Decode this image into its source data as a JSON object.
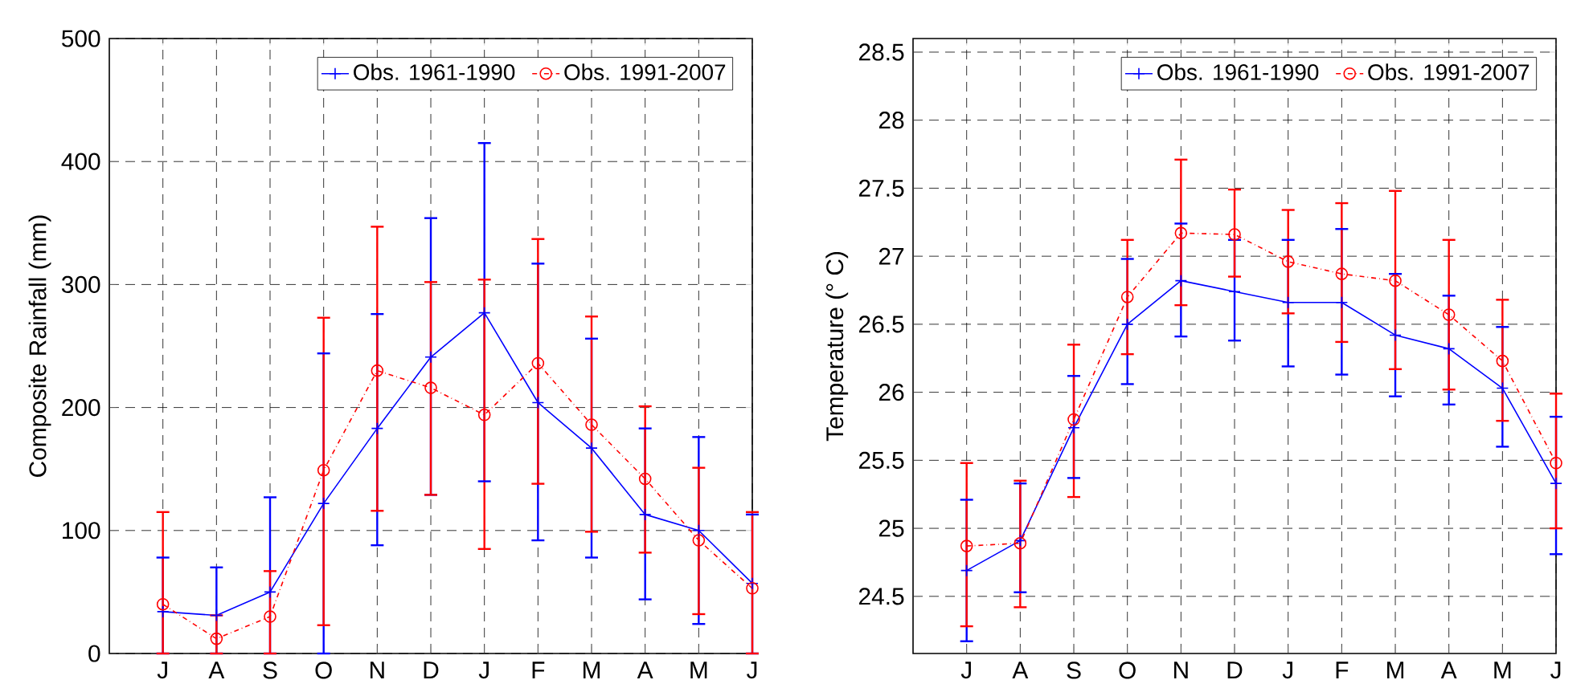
{
  "chart_data": [
    {
      "type": "line",
      "ylabel": "Composite Rainfall (mm)",
      "categories": [
        "J",
        "A",
        "S",
        "O",
        "N",
        "D",
        "J",
        "F",
        "M",
        "A",
        "M",
        "J"
      ],
      "ylim": [
        0,
        500
      ],
      "yticks": [
        0,
        100,
        200,
        300,
        400,
        500
      ],
      "grid": true,
      "legend": "top right",
      "series": [
        {
          "name": "Obs. 1961-1990",
          "color": "#0000ff",
          "marker": "cross",
          "line_style": "solid",
          "values": [
            34,
            31,
            50,
            122,
            183,
            241,
            277,
            204,
            167,
            113,
            100,
            57
          ],
          "errors": [
            [
              0,
              78
            ],
            [
              0,
              70
            ],
            [
              0,
              127
            ],
            [
              0,
              244
            ],
            [
              88,
              276
            ],
            [
              129,
              354
            ],
            [
              140,
              415
            ],
            [
              92,
              317
            ],
            [
              78,
              256
            ],
            [
              44,
              183
            ],
            [
              24,
              176
            ],
            [
              0,
              113
            ]
          ]
        },
        {
          "name": "Obs. 1991-2007",
          "color": "#ff0000",
          "marker": "circle",
          "line_style": "dashdot",
          "values": [
            40,
            12,
            30,
            149,
            230,
            216,
            194,
            236,
            186,
            142,
            92,
            53
          ],
          "errors": [
            [
              0,
              115
            ],
            [
              0,
              31
            ],
            [
              0,
              67
            ],
            [
              23,
              273
            ],
            [
              116,
              347
            ],
            [
              129,
              302
            ],
            [
              85,
              304
            ],
            [
              138,
              337
            ],
            [
              99,
              274
            ],
            [
              82,
              201
            ],
            [
              32,
              151
            ],
            [
              0,
              115
            ]
          ]
        }
      ]
    },
    {
      "type": "line",
      "ylabel": "Temperature (° C)",
      "categories": [
        "J",
        "A",
        "S",
        "O",
        "N",
        "D",
        "J",
        "F",
        "M",
        "A",
        "M",
        "J"
      ],
      "ylim": [
        24.08,
        28.6
      ],
      "yticks": [
        24.5,
        25,
        25.5,
        26,
        26.5,
        27,
        27.5,
        28,
        28.5
      ],
      "grid": true,
      "legend": "top right",
      "series": [
        {
          "name": "Obs. 1961-1990",
          "color": "#0000ff",
          "marker": "cross",
          "line_style": "solid",
          "values": [
            24.69,
            24.91,
            25.74,
            26.5,
            26.82,
            26.74,
            26.66,
            26.66,
            26.42,
            26.32,
            26.03,
            25.33
          ],
          "errors": [
            [
              24.17,
              25.21
            ],
            [
              24.53,
              25.33
            ],
            [
              25.37,
              26.12
            ],
            [
              26.06,
              26.98
            ],
            [
              26.41,
              27.24
            ],
            [
              26.38,
              27.12
            ],
            [
              26.19,
              27.12
            ],
            [
              26.13,
              27.2
            ],
            [
              25.97,
              26.87
            ],
            [
              25.91,
              26.71
            ],
            [
              25.6,
              26.48
            ],
            [
              24.81,
              25.82
            ]
          ]
        },
        {
          "name": "Obs. 1991-2007",
          "color": "#ff0000",
          "marker": "circle",
          "line_style": "dashdot",
          "values": [
            24.87,
            24.89,
            25.8,
            26.7,
            27.17,
            27.16,
            26.96,
            26.87,
            26.82,
            26.57,
            26.23,
            25.48
          ],
          "errors": [
            [
              24.28,
              25.48
            ],
            [
              24.42,
              25.35
            ],
            [
              25.23,
              26.35
            ],
            [
              26.28,
              27.12
            ],
            [
              26.64,
              27.71
            ],
            [
              26.85,
              27.49
            ],
            [
              26.58,
              27.34
            ],
            [
              26.37,
              27.39
            ],
            [
              26.17,
              27.48
            ],
            [
              26.02,
              27.12
            ],
            [
              25.79,
              26.68
            ],
            [
              25.0,
              25.99
            ]
          ]
        }
      ]
    }
  ]
}
